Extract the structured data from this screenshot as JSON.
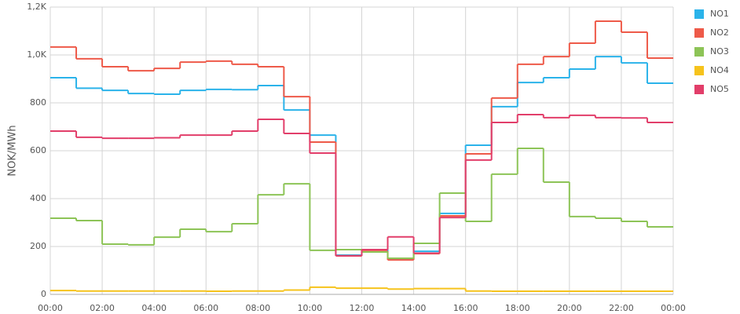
{
  "chart_data": {
    "type": "step",
    "y_label": "NOK/MWh",
    "x": [
      0,
      1,
      2,
      3,
      4,
      5,
      6,
      7,
      8,
      9,
      10,
      11,
      12,
      13,
      14,
      15,
      16,
      17,
      18,
      19,
      20,
      21,
      22,
      23
    ],
    "xlim": [
      0,
      24
    ],
    "xticks": [
      {
        "value": 0,
        "label": "00:00"
      },
      {
        "value": 2,
        "label": "02:00"
      },
      {
        "value": 4,
        "label": "04:00"
      },
      {
        "value": 6,
        "label": "06:00"
      },
      {
        "value": 8,
        "label": "08:00"
      },
      {
        "value": 10,
        "label": "10:00"
      },
      {
        "value": 12,
        "label": "12:00"
      },
      {
        "value": 14,
        "label": "14:00"
      },
      {
        "value": 16,
        "label": "16:00"
      },
      {
        "value": 18,
        "label": "18:00"
      },
      {
        "value": 20,
        "label": "20:00"
      },
      {
        "value": 22,
        "label": "22:00"
      },
      {
        "value": 24,
        "label": "00:00"
      }
    ],
    "ylim": [
      0,
      1200
    ],
    "yticks": [
      0,
      200,
      400,
      600,
      800,
      {
        "value": 1000,
        "label": "1,0K"
      },
      {
        "value": 1200,
        "label": "1,2K"
      }
    ],
    "grid": true,
    "legend": "right",
    "series": [
      {
        "name": "NO1",
        "color": "#2bb3ea",
        "values": [
          905,
          861,
          852,
          839,
          836,
          852,
          856,
          855,
          872,
          770,
          665,
          164,
          187,
          148,
          180,
          338,
          623,
          784,
          885,
          905,
          941,
          993,
          967,
          882
        ]
      },
      {
        "name": "NO2",
        "color": "#ee5a49",
        "values": [
          1033,
          984,
          951,
          934,
          944,
          970,
          974,
          961,
          951,
          826,
          636,
          161,
          180,
          144,
          170,
          328,
          587,
          820,
          961,
          993,
          1049,
          1141,
          1095,
          987
        ]
      },
      {
        "name": "NO3",
        "color": "#8dc457",
        "values": [
          318,
          308,
          210,
          207,
          239,
          272,
          262,
          295,
          416,
          462,
          184,
          187,
          177,
          151,
          213,
          423,
          305,
          502,
          610,
          469,
          325,
          318,
          305,
          282
        ]
      },
      {
        "name": "NO4",
        "color": "#f6c31c",
        "values": [
          16,
          14,
          14,
          14,
          14,
          14,
          13,
          14,
          14,
          18,
          30,
          26,
          26,
          22,
          24,
          24,
          14,
          13,
          13,
          13,
          13,
          13,
          13,
          13
        ]
      },
      {
        "name": "NO5",
        "color": "#e23e6a",
        "values": [
          682,
          656,
          652,
          652,
          654,
          665,
          665,
          682,
          731,
          672,
          590,
          161,
          187,
          240,
          172,
          321,
          561,
          718,
          751,
          738,
          748,
          738,
          737,
          718
        ]
      }
    ]
  }
}
